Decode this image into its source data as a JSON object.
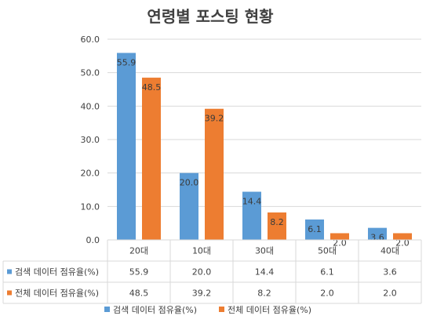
{
  "chart_data": {
    "type": "bar",
    "title": "연령별 포스팅 현황",
    "categories": [
      "20대",
      "10대",
      "30대",
      "50대",
      "40대"
    ],
    "series": [
      {
        "name": "검색 데이터 점유율(%)",
        "values": [
          55.9,
          20.0,
          14.4,
          6.1,
          3.6
        ],
        "color": "#5b9bd5"
      },
      {
        "name": "전체 데이터 점유율(%)",
        "values": [
          48.5,
          39.2,
          8.2,
          2.0,
          2.0
        ],
        "color": "#ed7d31"
      }
    ],
    "data_labels": [
      [
        "55.9",
        "20.0",
        "14.4",
        "6.1",
        "3.6"
      ],
      [
        "48.5",
        "39.2",
        "8.2",
        "2.0",
        "2.0"
      ]
    ],
    "ylim": [
      0,
      60
    ],
    "yticks": [
      "0.0",
      "10.0",
      "20.0",
      "30.0",
      "40.0",
      "50.0",
      "60.0"
    ],
    "grid": true,
    "data_table": true,
    "legend": "bottom"
  }
}
